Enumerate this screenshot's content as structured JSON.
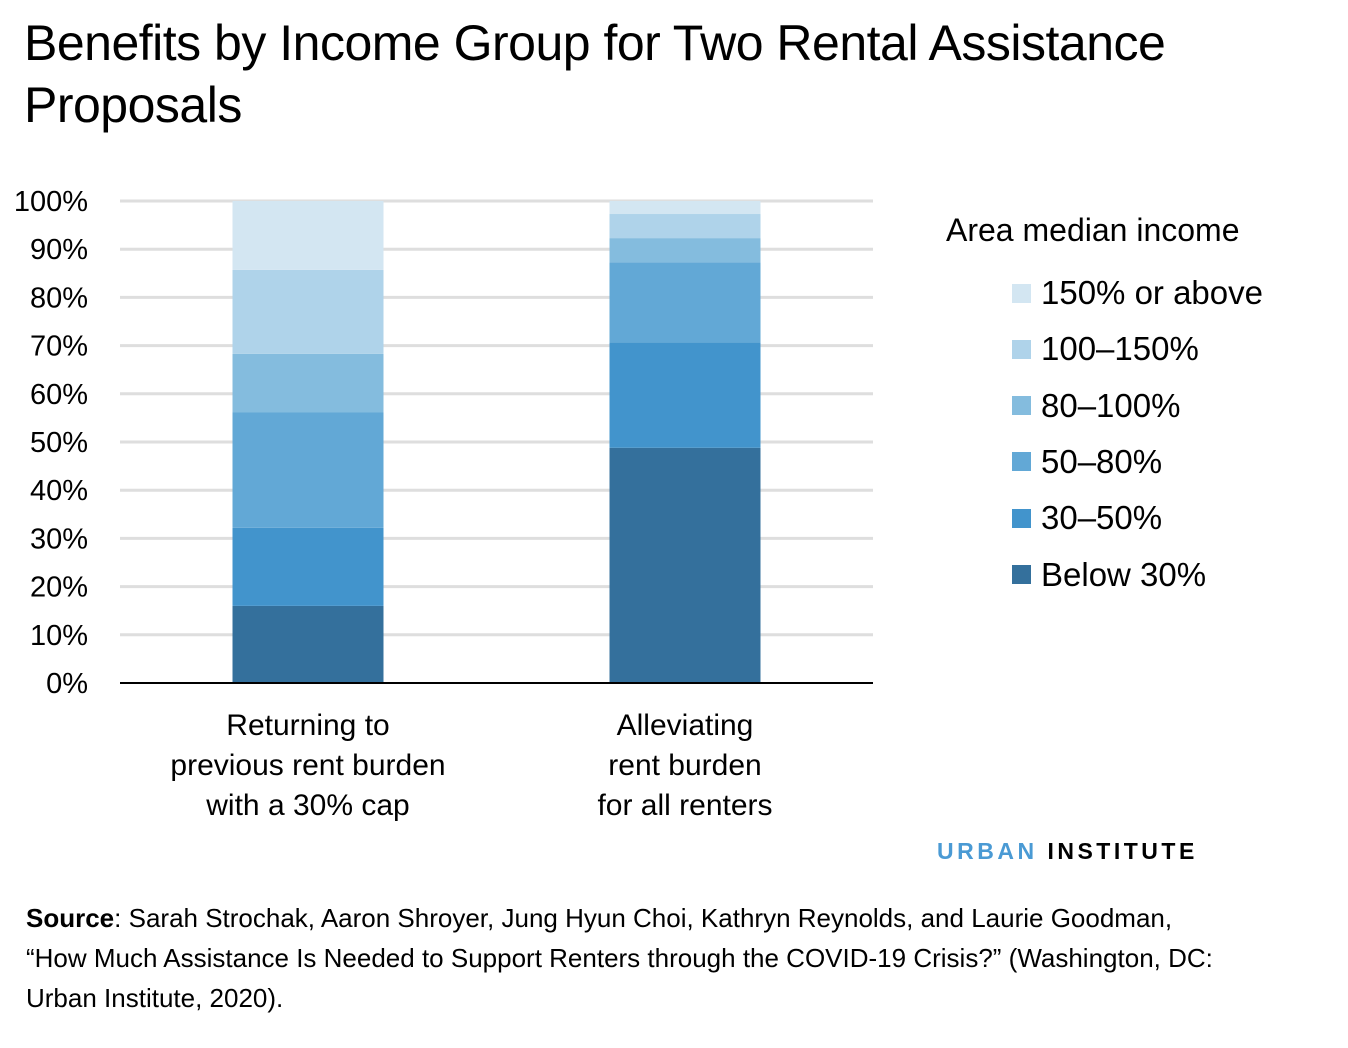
{
  "chart_data": {
    "type": "bar",
    "stacked": true,
    "title": "Benefits by Income Group for Two Rental Assistance Proposals",
    "xlabel": "",
    "ylabel": "",
    "ylim": [
      0,
      100
    ],
    "y_ticks": [
      "0%",
      "10%",
      "20%",
      "30%",
      "40%",
      "50%",
      "60%",
      "70%",
      "80%",
      "90%",
      "100%"
    ],
    "grid": true,
    "legend_title": "Area median income",
    "legend_position": "right",
    "categories": [
      "Returning to previous rent burden with a 30% cap",
      "Alleviating rent burden for all renters"
    ],
    "category_lines": [
      [
        "Returning to",
        "previous rent burden",
        "with a 30% cap"
      ],
      [
        "Alleviating",
        "rent burden",
        "for all renters"
      ]
    ],
    "series": [
      {
        "name": "Below 30%",
        "color": "#34709c",
        "values": [
          16.0,
          48.8
        ]
      },
      {
        "name": "30–50%",
        "color": "#4294cc",
        "values": [
          16.2,
          21.9
        ]
      },
      {
        "name": "50–80%",
        "color": "#62a8d6",
        "values": [
          24.0,
          16.6
        ]
      },
      {
        "name": "80–100%",
        "color": "#84bcde",
        "values": [
          12.1,
          5.0
        ]
      },
      {
        "name": "100–150%",
        "color": "#afd3ea",
        "values": [
          17.4,
          5.0
        ]
      },
      {
        "name": "150% or above",
        "color": "#d3e6f2",
        "values": [
          14.3,
          2.7
        ]
      }
    ]
  },
  "brand": {
    "part1": "URBAN",
    "part2": "INSTITUTE"
  },
  "source": {
    "label": "Source",
    "text": ": Sarah Strochak, Aaron Shroyer, Jung Hyun Choi, Kathryn Reynolds, and Laurie Goodman, “How Much Assistance Is Needed to Support Renters through the COVID-19 Crisis?” (Washington, DC: Urban Institute, 2020)."
  }
}
